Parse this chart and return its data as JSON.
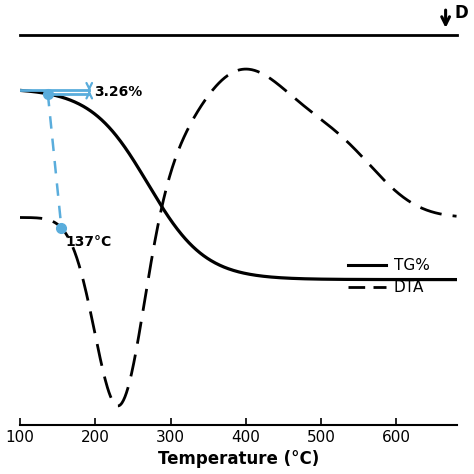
{
  "xlabel": "Temperature (°C)",
  "xlim": [
    100,
    680
  ],
  "x_ticks": [
    100,
    200,
    300,
    400,
    500,
    600
  ],
  "annotation_pct": "3.26%",
  "annotation_temp": "137°C",
  "tg_color": "#000000",
  "dta_color": "#000000",
  "arrow_color": "#5aaddc",
  "point_color": "#5aaddc",
  "background_color": "#ffffff",
  "legend_tg": "TG%",
  "legend_dta": "DTA",
  "figsize": [
    4.74,
    4.74
  ],
  "dpi": 100
}
